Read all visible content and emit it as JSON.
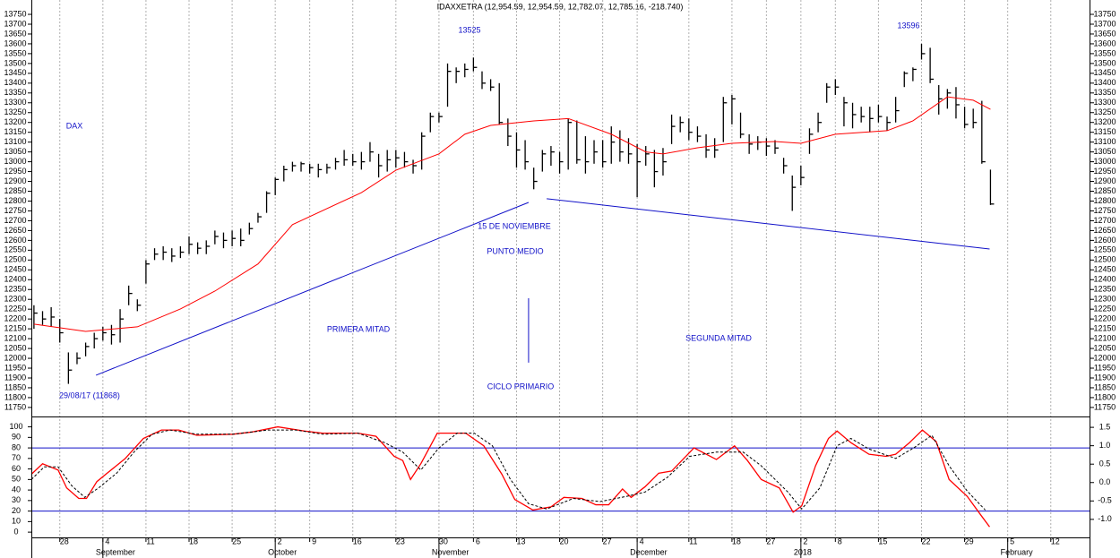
{
  "chart_data": [
    {
      "type": "ohlc",
      "title": "IDAXXETRA (12,954.59, 12,954.59, 12,782.07, 12,785.16, -218.740)",
      "color": "#000000",
      "x": [
        0,
        1,
        2,
        3,
        4,
        5,
        6,
        7,
        8,
        9,
        10,
        11,
        12,
        13,
        14,
        15,
        16,
        17,
        18,
        19,
        20,
        21,
        22,
        23,
        24,
        25,
        26,
        27,
        28,
        29,
        30,
        31,
        32,
        33,
        34,
        35,
        36,
        37,
        38,
        39,
        40,
        41,
        42,
        43,
        44,
        45,
        46,
        47,
        48,
        49,
        50,
        51,
        52,
        53,
        54,
        55,
        56,
        57,
        58,
        59,
        60,
        61,
        62,
        63,
        64,
        65,
        66,
        67,
        68,
        69,
        70,
        71,
        72,
        73,
        74,
        75,
        76,
        77,
        78,
        79,
        80,
        81,
        82,
        83,
        84,
        85,
        86,
        87,
        88,
        89,
        90,
        91,
        92,
        93,
        94,
        95,
        96,
        97,
        98,
        99,
        100,
        101,
        102,
        103,
        104,
        105,
        106,
        107,
        108,
        109,
        110,
        111
      ],
      "high": [
        12270,
        12240,
        12260,
        12200,
        12030,
        12030,
        12080,
        12130,
        12160,
        12170,
        12250,
        12370,
        12300,
        12500,
        12560,
        12570,
        12560,
        12570,
        12620,
        12590,
        12600,
        12650,
        12640,
        12650,
        12660,
        12690,
        12740,
        12850,
        12920,
        12980,
        13000,
        13000,
        12990,
        12990,
        12990,
        13020,
        13060,
        13040,
        13050,
        13100,
        13040,
        13060,
        13060,
        13050,
        13010,
        13150,
        13250,
        13250,
        13500,
        13480,
        13500,
        13530,
        13460,
        13420,
        13400,
        13220,
        13150,
        13110,
        12970,
        13060,
        13080,
        13050,
        13220,
        13210,
        13130,
        13110,
        13110,
        13180,
        13160,
        13120,
        13090,
        13080,
        13060,
        13070,
        13240,
        13230,
        13220,
        13180,
        13140,
        13120,
        13330,
        13340,
        13250,
        13140,
        13130,
        13120,
        13110,
        13020,
        12930,
        12980,
        13170,
        13250,
        13400,
        13420,
        13330,
        13300,
        13280,
        13280,
        13290,
        13230,
        13330,
        13460,
        13480,
        13600,
        13580,
        13390,
        13370,
        13380,
        13280,
        13270,
        13310,
        12960
      ],
      "low": [
        12150,
        12170,
        12160,
        12080,
        11870,
        11970,
        12010,
        12050,
        12090,
        12070,
        12080,
        12270,
        12240,
        12380,
        12500,
        12500,
        12490,
        12510,
        12530,
        12530,
        12530,
        12580,
        12560,
        12570,
        12570,
        12630,
        12690,
        12740,
        12830,
        12900,
        12950,
        12950,
        12940,
        12920,
        12940,
        12960,
        12980,
        12980,
        12960,
        13000,
        12920,
        12950,
        12970,
        12970,
        12940,
        12960,
        13150,
        13200,
        13280,
        13400,
        13430,
        13460,
        13370,
        13360,
        13190,
        13080,
        12970,
        12960,
        12860,
        12950,
        12980,
        12940,
        12960,
        12990,
        12940,
        12990,
        12970,
        12990,
        13000,
        12990,
        12820,
        12980,
        12870,
        12930,
        13090,
        13150,
        13110,
        13100,
        13020,
        13020,
        13100,
        13190,
        13120,
        13040,
        13060,
        13030,
        13040,
        12940,
        12750,
        12880,
        13040,
        13150,
        13300,
        13340,
        13180,
        13170,
        13200,
        13150,
        13200,
        13160,
        13200,
        13380,
        13410,
        13520,
        13400,
        13240,
        13270,
        13220,
        13170,
        13170,
        12990,
        12780
      ],
      "close": [
        12230,
        12200,
        12210,
        12130,
        11940,
        12000,
        12060,
        12100,
        12130,
        12120,
        12200,
        12330,
        12270,
        12480,
        12530,
        12540,
        12520,
        12540,
        12580,
        12560,
        12570,
        12620,
        12600,
        12610,
        12600,
        12660,
        12720,
        12840,
        12910,
        12960,
        12980,
        12990,
        12970,
        12960,
        12970,
        13000,
        13010,
        13000,
        13000,
        13050,
        12980,
        13010,
        13020,
        13000,
        12980,
        13130,
        13230,
        13230,
        13460,
        13460,
        13470,
        13480,
        13400,
        13380,
        13200,
        13130,
        13060,
        13000,
        12900,
        13040,
        13050,
        13000,
        13200,
        13010,
        13000,
        13050,
        13000,
        13100,
        13050,
        13040,
        13000,
        13040,
        12950,
        13000,
        13180,
        13200,
        13150,
        13130,
        13060,
        13060,
        13300,
        13320,
        13140,
        13090,
        13100,
        13080,
        13070,
        12980,
        12870,
        12920,
        13140,
        13200,
        13380,
        13380,
        13300,
        13240,
        13230,
        13220,
        13230,
        13200,
        13260,
        13450,
        13470,
        13550,
        13420,
        13320,
        13350,
        13290,
        13190,
        13200,
        13000,
        12785
      ],
      "moving_average": {
        "color": "#ff0000",
        "x": [
          0,
          6,
          12,
          17,
          21,
          26,
          27,
          30,
          38,
          42,
          47,
          50,
          53,
          58,
          62,
          67,
          71,
          73,
          77,
          81,
          86,
          89,
          93,
          99,
          102,
          106,
          109,
          111
        ],
        "values": [
          12174,
          12137,
          12160,
          12251,
          12342,
          12480,
          12530,
          12680,
          12843,
          12957,
          13040,
          13140,
          13185,
          13208,
          13220,
          13140,
          13050,
          13040,
          13071,
          13094,
          13103,
          13094,
          13140,
          13158,
          13208,
          13330,
          13313,
          13267
        ]
      },
      "trend_lines": [
        {
          "color": "#1010c8",
          "x": [
            7.2,
            57.4
          ],
          "values": [
            11914,
            12793
          ]
        },
        {
          "color": "#1010c8",
          "x": [
            59.5,
            110.9
          ],
          "values": [
            12812,
            12556
          ]
        },
        {
          "color": "#1010c8",
          "x": [
            57.4,
            57.4
          ],
          "values": [
            12306,
            11978
          ]
        }
      ],
      "annotations": [
        "13525",
        "13596",
        "DAX",
        "29/08/17 (11868)",
        "PRIMERA MITAD",
        "15 DE NOVIEMBRE",
        "PUNTO MEDIO",
        "CICLO PRIMARIO",
        "SEGUNDA MITAD"
      ],
      "xlim": [
        -0.3,
        122.6
      ],
      "ylim": [
        11704,
        13823
      ],
      "yticks": [
        11750,
        11800,
        11850,
        11900,
        11950,
        12000,
        12050,
        12100,
        12150,
        12200,
        12250,
        12300,
        12350,
        12400,
        12450,
        12500,
        12550,
        12600,
        12650,
        12700,
        12750,
        12800,
        12850,
        12900,
        12950,
        13000,
        13050,
        13100,
        13150,
        13200,
        13250,
        13300,
        13350,
        13400,
        13450,
        13500,
        13550,
        13600,
        13650,
        13700,
        13750
      ],
      "xticks": [
        {
          "value": 3,
          "label": "28"
        },
        {
          "value": 8,
          "label": "4"
        },
        {
          "value": 13,
          "label": "11"
        },
        18,
        {
          "value": 23,
          "label": "25"
        },
        {
          "value": 28,
          "label": "2"
        },
        {
          "value": 32,
          "label": "9"
        },
        {
          "value": 37,
          "label": "16"
        },
        {
          "value": 42,
          "label": "23"
        },
        {
          "value": 47,
          "label": "30"
        },
        {
          "value": 51,
          "label": "6"
        },
        {
          "value": 56,
          "label": "13"
        },
        {
          "value": 61,
          "label": "20"
        },
        {
          "value": 66,
          "label": "27"
        },
        {
          "value": 70,
          "label": "4"
        },
        {
          "value": 76,
          "label": "11"
        },
        {
          "value": 81,
          "label": "18"
        },
        {
          "value": 85,
          "label": "27"
        },
        {
          "value": 89,
          "label": "2"
        },
        {
          "value": 93,
          "label": "8"
        },
        {
          "value": 98,
          "label": "15"
        },
        {
          "value": 103,
          "label": "22"
        },
        {
          "value": 108,
          "label": "29"
        },
        {
          "value": 113,
          "label": "5"
        },
        {
          "value": 118,
          "label": "12"
        }
      ],
      "month_ticks": [
        {
          "value": 8,
          "label": "September"
        },
        {
          "value": 28,
          "label": "October"
        },
        {
          "value": 47,
          "label": "November"
        },
        {
          "value": 70,
          "label": "December"
        },
        {
          "value": 89,
          "label": "2018"
        },
        {
          "value": 113,
          "label": "February"
        }
      ],
      "grid": "x"
    },
    {
      "type": "line",
      "series": [
        {
          "color": "#ff0000",
          "dashed": false,
          "x": [
            -0.3,
            1.0,
            2.8,
            3.8,
            5.2,
            6.1,
            7.3,
            8.5,
            10.6,
            12.7,
            14.8,
            16.8,
            18.9,
            23.1,
            25.2,
            28.3,
            31.4,
            33.5,
            37.6,
            39.7,
            41.8,
            42.8,
            43.7,
            44.9,
            46.8,
            50.1,
            52.2,
            54.3,
            55.8,
            57.9,
            60.0,
            61.5,
            63.6,
            65.2,
            66.7,
            68.3,
            69.3,
            70.9,
            72.5,
            74.0,
            76.6,
            79.2,
            81.3,
            82.8,
            84.4,
            86.5,
            88.1,
            89.1,
            90.7,
            92.2,
            93.2,
            94.8,
            96.9,
            98.9,
            100,
            101.6,
            103.1,
            104.7,
            106.2,
            108.3,
            109.9,
            110.9
          ],
          "values": [
            55,
            65,
            59,
            42,
            32,
            32,
            48,
            56,
            70,
            89,
            97,
            97,
            92,
            93,
            95,
            100,
            96,
            94,
            94,
            91,
            72,
            68,
            50,
            65,
            94,
            94,
            82,
            55,
            31,
            21,
            24,
            33,
            32,
            26,
            26,
            41,
            33,
            43,
            56,
            58,
            80,
            69,
            82,
            68,
            50,
            42,
            19,
            25,
            63,
            89,
            96,
            85,
            74,
            72,
            74,
            85,
            97,
            86,
            50,
            34,
            16,
            5
          ]
        },
        {
          "color": "#000000",
          "dashed": true,
          "x": [
            -0.3,
            1.2,
            2.8,
            4.4,
            5.9,
            7.5,
            9.6,
            11.6,
            13.7,
            15.8,
            18.9,
            23.1,
            27.2,
            30.4,
            33.5,
            37.6,
            40.7,
            42.8,
            44.9,
            47.0,
            49.1,
            51.1,
            53.2,
            55.3,
            57.4,
            59.5,
            62.6,
            65.7,
            68.8,
            70.9,
            73.5,
            76.1,
            79.2,
            82.3,
            84.4,
            87.5,
            89.1,
            91.2,
            93.2,
            94.8,
            96.9,
            100,
            102.1,
            104.2,
            106.2,
            108.3,
            110.4
          ],
          "values": [
            50,
            62,
            62,
            44,
            33,
            42,
            56,
            76,
            93,
            97,
            93,
            93,
            97,
            97,
            93,
            94,
            85,
            76,
            59,
            80,
            94,
            94,
            82,
            50,
            27,
            22,
            32,
            29,
            34,
            38,
            52,
            72,
            76,
            76,
            63,
            38,
            22,
            42,
            82,
            89,
            79,
            70,
            80,
            92,
            63,
            39,
            21
          ]
        }
      ],
      "reference_lines": [
        80,
        20
      ],
      "reference_color": "#1010c8",
      "xlim": [
        -0.3,
        122.6
      ],
      "ylim": [
        -5,
        109
      ],
      "yticks": [
        0,
        10,
        20,
        30,
        40,
        50,
        60,
        70,
        80,
        90,
        100
      ],
      "y2lim": [
        -1.49,
        1.77
      ],
      "y2ticks": [
        {
          "value": 1.5,
          "label": "1.5"
        },
        {
          "value": 1,
          "label": "1.0"
        },
        0.5,
        {
          "value": 0,
          "label": "0.0"
        },
        -0.5,
        {
          "value": -1,
          "label": "-1.0"
        }
      ]
    }
  ]
}
